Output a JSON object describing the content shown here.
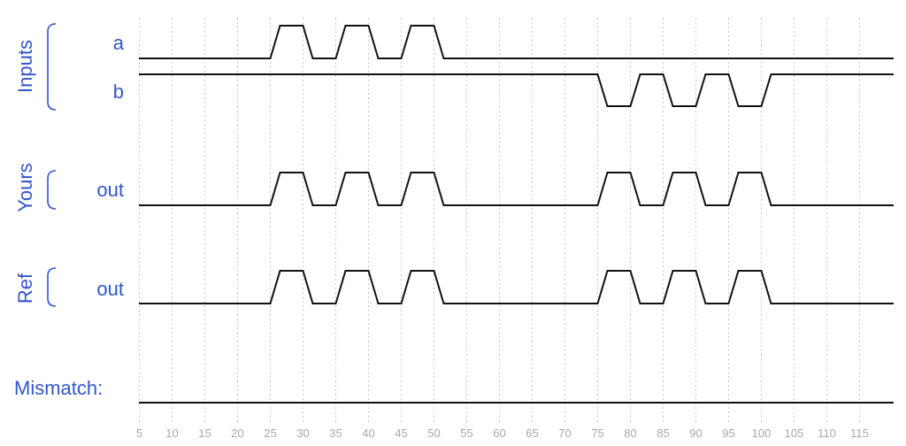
{
  "chart_data": {
    "type": "waveform",
    "groups": [
      {
        "name": "Inputs",
        "signals": [
          "a",
          "b"
        ]
      },
      {
        "name": "Yours",
        "signals": [
          "out"
        ]
      },
      {
        "name": "Ref",
        "signals": [
          "out"
        ]
      }
    ],
    "signals": [
      {
        "id": "a",
        "label": "a",
        "group": "Inputs",
        "initial": 0,
        "pulses": [
          [
            25,
            30
          ],
          [
            35,
            40
          ],
          [
            45,
            50
          ]
        ]
      },
      {
        "id": "b",
        "label": "b",
        "group": "Inputs",
        "initial": 1,
        "pulses": [
          [
            75,
            80
          ],
          [
            85,
            90
          ],
          [
            95,
            100
          ]
        ]
      },
      {
        "id": "yours_out",
        "label": "out",
        "group": "Yours",
        "initial": 0,
        "pulses": [
          [
            25,
            30
          ],
          [
            35,
            40
          ],
          [
            45,
            50
          ],
          [
            75,
            80
          ],
          [
            85,
            90
          ],
          [
            95,
            100
          ]
        ]
      },
      {
        "id": "ref_out",
        "label": "out",
        "group": "Ref",
        "initial": 0,
        "pulses": [
          [
            25,
            30
          ],
          [
            35,
            40
          ],
          [
            45,
            50
          ],
          [
            75,
            80
          ],
          [
            85,
            90
          ],
          [
            95,
            100
          ]
        ]
      }
    ],
    "mismatch_label": "Mismatch:",
    "mismatch_pulses": [],
    "x_ticks": [
      5,
      10,
      15,
      20,
      25,
      30,
      35,
      40,
      45,
      50,
      55,
      60,
      65,
      70,
      75,
      80,
      85,
      90,
      95,
      100,
      105,
      110,
      115
    ],
    "xlim": [
      5,
      118
    ],
    "grid": true
  }
}
